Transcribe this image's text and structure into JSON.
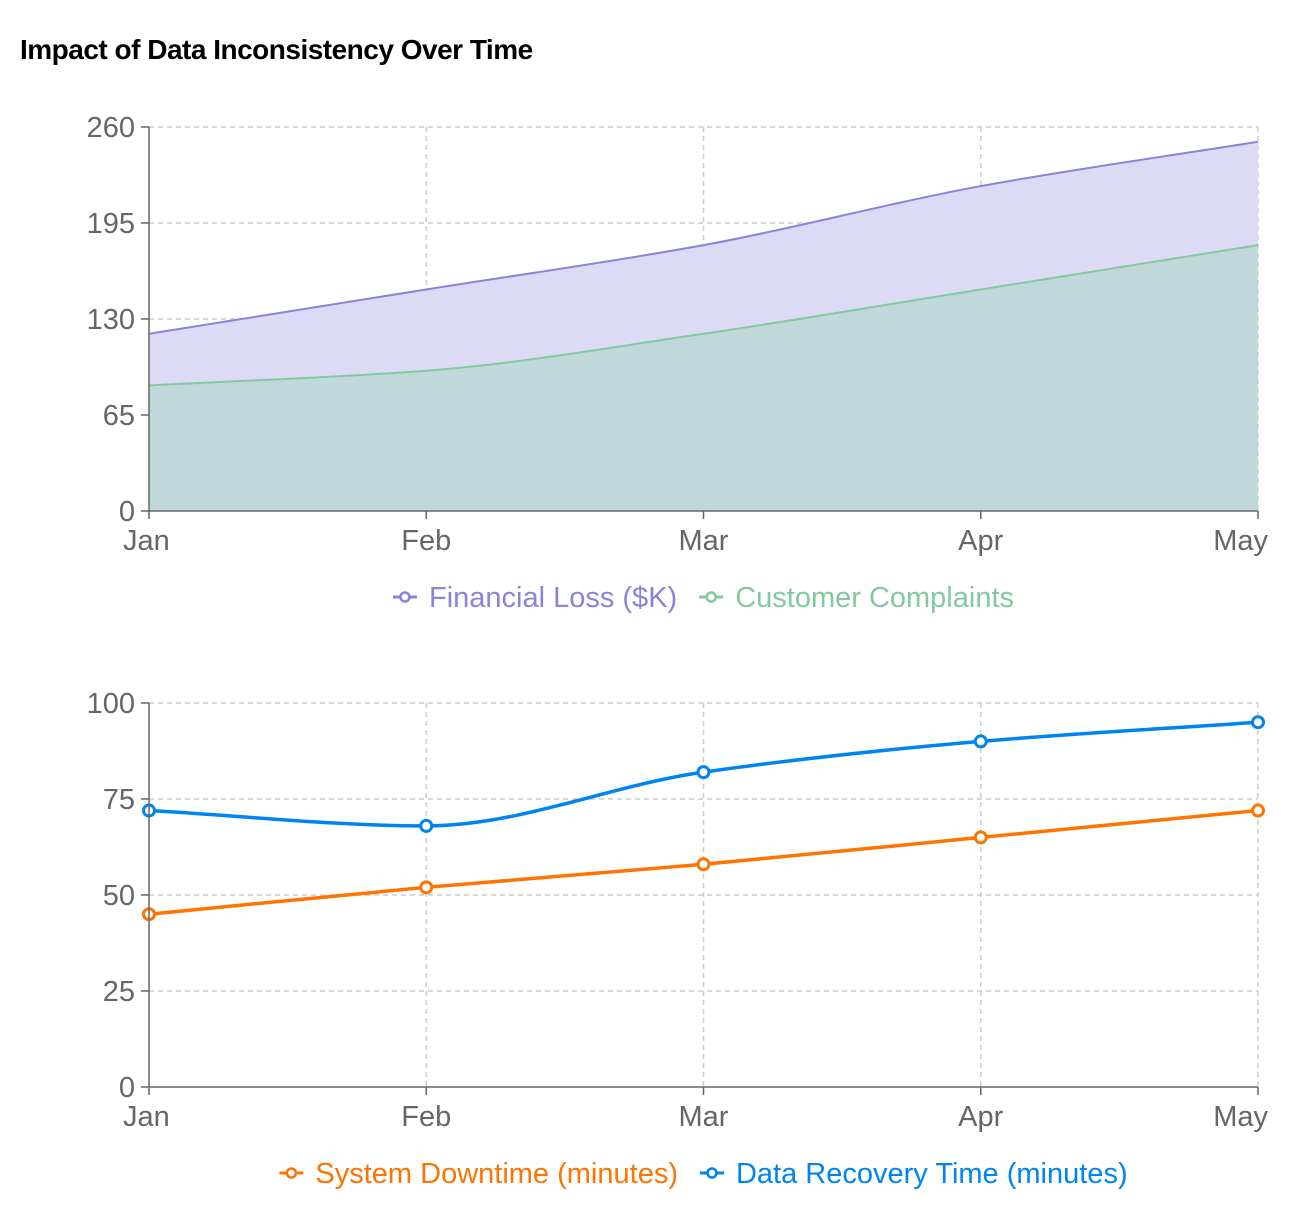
{
  "title": "Impact of Data Inconsistency Over Time",
  "chart_data": [
    {
      "type": "area",
      "categories": [
        "Jan",
        "Feb",
        "Mar",
        "Apr",
        "May"
      ],
      "ylim": [
        0,
        260
      ],
      "yticks": [
        0,
        65,
        130,
        195,
        260
      ],
      "grid": true,
      "legend": "bottom-center",
      "series": [
        {
          "name": "Financial Loss ($K)",
          "values": [
            120,
            150,
            180,
            220,
            250
          ],
          "color": "#8884d8",
          "fill": "#dcdaf5"
        },
        {
          "name": "Customer Complaints",
          "values": [
            85,
            95,
            120,
            150,
            180
          ],
          "color": "#82ca9d",
          "fill": "#c1d8da"
        }
      ]
    },
    {
      "type": "line",
      "categories": [
        "Jan",
        "Feb",
        "Mar",
        "Apr",
        "May"
      ],
      "ylim": [
        0,
        100
      ],
      "yticks": [
        0,
        25,
        50,
        75,
        100
      ],
      "grid": true,
      "legend": "bottom-center",
      "series": [
        {
          "name": "System Downtime (minutes)",
          "values": [
            45,
            52,
            58,
            65,
            72
          ],
          "color": "#ff7300"
        },
        {
          "name": "Data Recovery Time (minutes)",
          "values": [
            72,
            68,
            82,
            90,
            95
          ],
          "color": "#0084f0"
        }
      ]
    }
  ]
}
